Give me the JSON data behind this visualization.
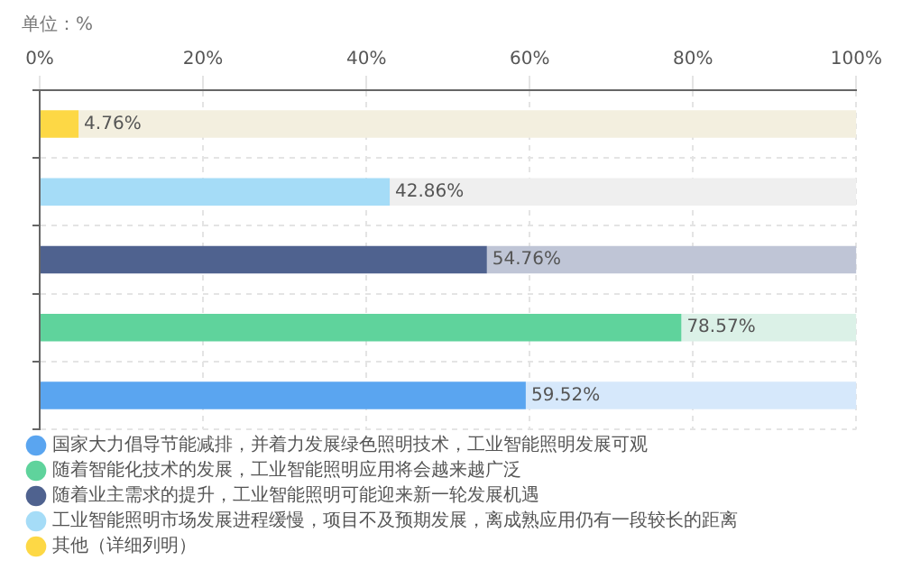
{
  "chart_data": {
    "type": "bar",
    "orientation": "horizontal",
    "stacked": true,
    "title": "单位：%",
    "categories": [
      null,
      null,
      null,
      null,
      null
    ],
    "series": [
      {
        "name": "国家大力倡导节能减排，并着力发展绿色照明技术，工业智能照明发展可观",
        "color": "#5aa5f0",
        "values": [
          null,
          null,
          null,
          null,
          59.52
        ],
        "value_labels": [
          null,
          null,
          null,
          null,
          "59.52%"
        ]
      },
      {
        "name": "随着智能化技术的发展，工业智能照明应用将会越来越广泛",
        "color": "#5fd39c",
        "values": [
          null,
          null,
          null,
          78.57,
          null
        ],
        "value_labels": [
          null,
          null,
          null,
          "78.57%",
          null
        ]
      },
      {
        "name": "随着业主需求的提升，工业智能照明可能迎来新一轮发展机遇",
        "color": "#4f628f",
        "values": [
          null,
          null,
          54.76,
          null,
          null
        ],
        "value_labels": [
          null,
          null,
          "54.76%",
          null,
          null
        ]
      },
      {
        "name": "工业智能照明市场发展进程缓慢，项目不及预期发展，离成熟应用仍有一段较长的距离",
        "color": "#a5dcf7",
        "values": [
          null,
          42.86,
          null,
          null,
          null
        ],
        "value_labels": [
          null,
          "42.86%",
          null,
          null,
          null
        ]
      },
      {
        "name": "其他（详细列明）",
        "color": "#fdd845",
        "values": [
          4.76,
          null,
          null,
          null,
          null
        ],
        "value_labels": [
          "4.76%",
          null,
          null,
          null,
          null
        ]
      },
      {
        "colors": [
          "#f3efdf",
          "#efefef",
          "#bfc5d6",
          "#dbf1e7",
          "#d6e8fb"
        ],
        "values": [
          95.24,
          57.14,
          45.24,
          21.43,
          40.48
        ]
      }
    ],
    "xlim": [
      0,
      100
    ],
    "xticks": [
      {
        "value": 0,
        "label": "0%"
      },
      {
        "value": 20,
        "label": "20%"
      },
      {
        "value": 40,
        "label": "40%"
      },
      {
        "value": 60,
        "label": "60%"
      },
      {
        "value": 80,
        "label": "80%"
      },
      {
        "value": 100,
        "label": "100%"
      }
    ],
    "grid": true,
    "line_style": "dashed",
    "legend": "bottom"
  }
}
